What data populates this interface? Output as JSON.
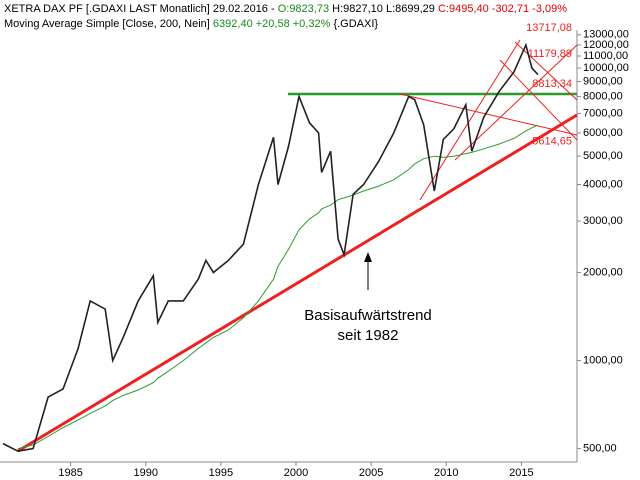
{
  "header": {
    "line1": [
      "XETRA DAX PF [.GDAXI LAST Monatlich] 29.02.2016 -",
      "O:9823,73",
      "H:9827,10 L:8699,29",
      "C:9495,40 -302,71 -3,09%"
    ],
    "line2": [
      "Moving Average Simple [Close, 200, Nein]",
      "6392,40 +20,58 +0,32%",
      "{.GDAXI}"
    ]
  },
  "chart_data": {
    "type": "line",
    "log_scale": true,
    "x": [
      1980.5,
      1981.5,
      1982.5,
      1983.5,
      1984.5,
      1985.5,
      1986.3,
      1987.3,
      1987.8,
      1988.5,
      1989.5,
      1990.5,
      1990.8,
      1991.5,
      1992.5,
      1993.5,
      1994.0,
      1994.5,
      1995.5,
      1996.5,
      1997.5,
      1998.5,
      1998.8,
      1999.5,
      2000.2,
      2000.9,
      2001.5,
      2001.7,
      2002.3,
      2002.8,
      2003.2,
      2003.8,
      2004.5,
      2005.5,
      2006.5,
      2007.5,
      2007.9,
      2008.5,
      2009.2,
      2009.8,
      2010.5,
      2011.3,
      2011.7,
      2012.5,
      2013.5,
      2014.5,
      2015.3,
      2015.7,
      2016.1
    ],
    "series": [
      {
        "color": "#222222",
        "values": [
          520,
          490,
          500,
          750,
          800,
          1100,
          1600,
          1500,
          1000,
          1200,
          1600,
          1950,
          1350,
          1600,
          1600,
          1900,
          2200,
          2000,
          2200,
          2500,
          4000,
          5800,
          4000,
          5400,
          8000,
          6500,
          6000,
          4400,
          5200,
          2600,
          2300,
          3700,
          4000,
          4800,
          6000,
          8000,
          7800,
          6400,
          3800,
          5700,
          6200,
          7500,
          5200,
          6800,
          8300,
          9700,
          12000,
          10000,
          9500
        ]
      },
      {
        "color": "#2e9a2e",
        "values": [
          null,
          500,
          515,
          550,
          590,
          627,
          660,
          700,
          730,
          760,
          793,
          840,
          870,
          920,
          1000,
          1100,
          1150,
          1200,
          1272,
          1400,
          1600,
          1900,
          2100,
          2400,
          2800,
          3050,
          3200,
          3300,
          3400,
          3550,
          3600,
          3680,
          3800,
          3950,
          4150,
          4500,
          4700,
          4900,
          5000,
          4950,
          5000,
          5100,
          5150,
          5300,
          5500,
          5750,
          6100,
          6250,
          6392
        ]
      }
    ],
    "xlim": [
      1980.3,
      2018.7
    ],
    "xticks": [
      1985,
      1990,
      1995,
      2000,
      2005,
      2010,
      2015
    ],
    "ylim": [
      450,
      13500
    ],
    "yticks": [
      {
        "value": 500,
        "label": "500,00"
      },
      {
        "value": 1000,
        "label": "1000,00"
      },
      {
        "value": 2000,
        "label": "2000,00"
      },
      {
        "value": 3000,
        "label": "3000,00"
      },
      {
        "value": 4000,
        "label": "4000,00"
      },
      {
        "value": 5000,
        "label": "5000,00"
      },
      {
        "value": 6000,
        "label": "6000,00"
      },
      {
        "value": 7000,
        "label": "7000,00"
      },
      {
        "value": 8000,
        "label": "8000,00"
      },
      {
        "value": 9000,
        "label": "9000,00"
      },
      {
        "value": 10000,
        "label": "10000,00"
      },
      {
        "value": 11000,
        "label": "11000,00"
      },
      {
        "value": 12000,
        "label": "12000,00"
      },
      {
        "value": 13000,
        "label": "13000,00"
      }
    ],
    "levels": [
      {
        "value": 13717.08,
        "label": "13717,08"
      },
      {
        "value": 11179.89,
        "label": "11179,89"
      },
      {
        "value": 8813.34,
        "label": "8813,34"
      },
      {
        "value": 5614.65,
        "label": "5614,65"
      }
    ],
    "annotation": [
      "Basisaufwärtstrend",
      "seit 1982"
    ]
  }
}
